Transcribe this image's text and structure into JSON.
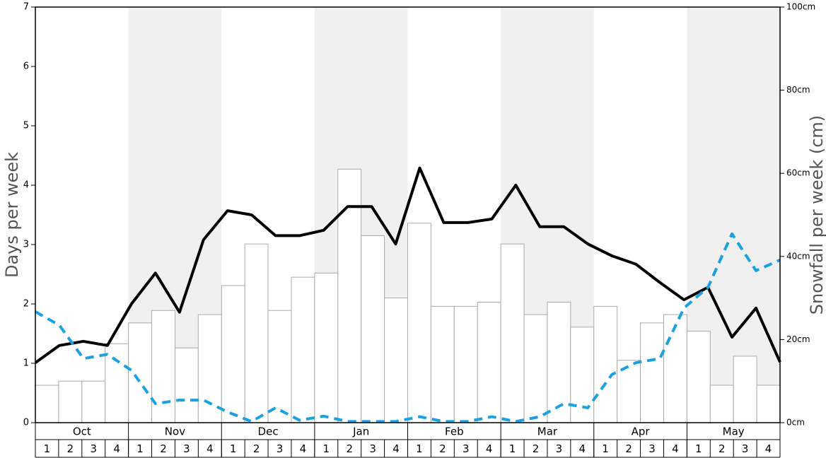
{
  "chart_data": {
    "type": "combo",
    "y_label": "Days per week",
    "y2_label": "Snowfall per week (cm)",
    "months": [
      "Oct",
      "Nov",
      "Dec",
      "Jan",
      "Feb",
      "Mar",
      "Apr",
      "May"
    ],
    "categories": [
      "1",
      "2",
      "3",
      "4",
      "1",
      "2",
      "3",
      "4",
      "1",
      "2",
      "3",
      "4",
      "1",
      "2",
      "3",
      "4",
      "1",
      "2",
      "3",
      "4",
      "1",
      "2",
      "3",
      "4",
      "1",
      "2",
      "3",
      "4",
      "1",
      "2",
      "3",
      "4"
    ],
    "ylim": [
      0,
      7
    ],
    "yticks": [
      0,
      1,
      2,
      3,
      4,
      5,
      6,
      7
    ],
    "y2lim": [
      0,
      100
    ],
    "y2ticks": [
      {
        "value": 0,
        "label": "0cm"
      },
      {
        "value": 20,
        "label": "20cm"
      },
      {
        "value": 40,
        "label": "40cm"
      },
      {
        "value": 60,
        "label": "60cm"
      },
      {
        "value": 80,
        "label": "80cm"
      },
      {
        "value": 100,
        "label": "100cm"
      }
    ],
    "series": [
      {
        "type": "bar",
        "axis": "y2",
        "color": "#ffffff",
        "values": [
          9,
          10,
          10,
          19,
          24,
          27,
          18,
          26,
          33,
          43,
          27,
          35,
          36,
          61,
          45,
          30,
          48,
          28,
          28,
          29,
          43,
          26,
          29,
          23,
          28,
          15,
          24,
          26,
          22,
          9,
          16,
          9
        ]
      },
      {
        "type": "line",
        "color": "#000000",
        "values": [
          1.01,
          1.3,
          1.37,
          1.3,
          2.0,
          2.52,
          1.86,
          3.08,
          3.57,
          3.5,
          3.15,
          3.15,
          3.24,
          3.64,
          3.64,
          3.01,
          4.29,
          3.37,
          3.37,
          3.43,
          4.0,
          3.3,
          3.3,
          3.01,
          2.81,
          2.67,
          2.36,
          2.07,
          2.28,
          1.44,
          1.93,
          1.02
        ]
      },
      {
        "type": "line",
        "dashed": true,
        "color": "#1ba1e2",
        "values": [
          1.87,
          1.64,
          1.08,
          1.15,
          0.88,
          0.32,
          0.38,
          0.38,
          0.18,
          0.02,
          0.25,
          0.04,
          0.11,
          0.02,
          0.02,
          0.02,
          0.1,
          0.02,
          0.02,
          0.1,
          0.02,
          0.1,
          0.32,
          0.25,
          0.81,
          1.01,
          1.08,
          1.93,
          2.28,
          3.18,
          2.56,
          2.74
        ]
      }
    ]
  }
}
